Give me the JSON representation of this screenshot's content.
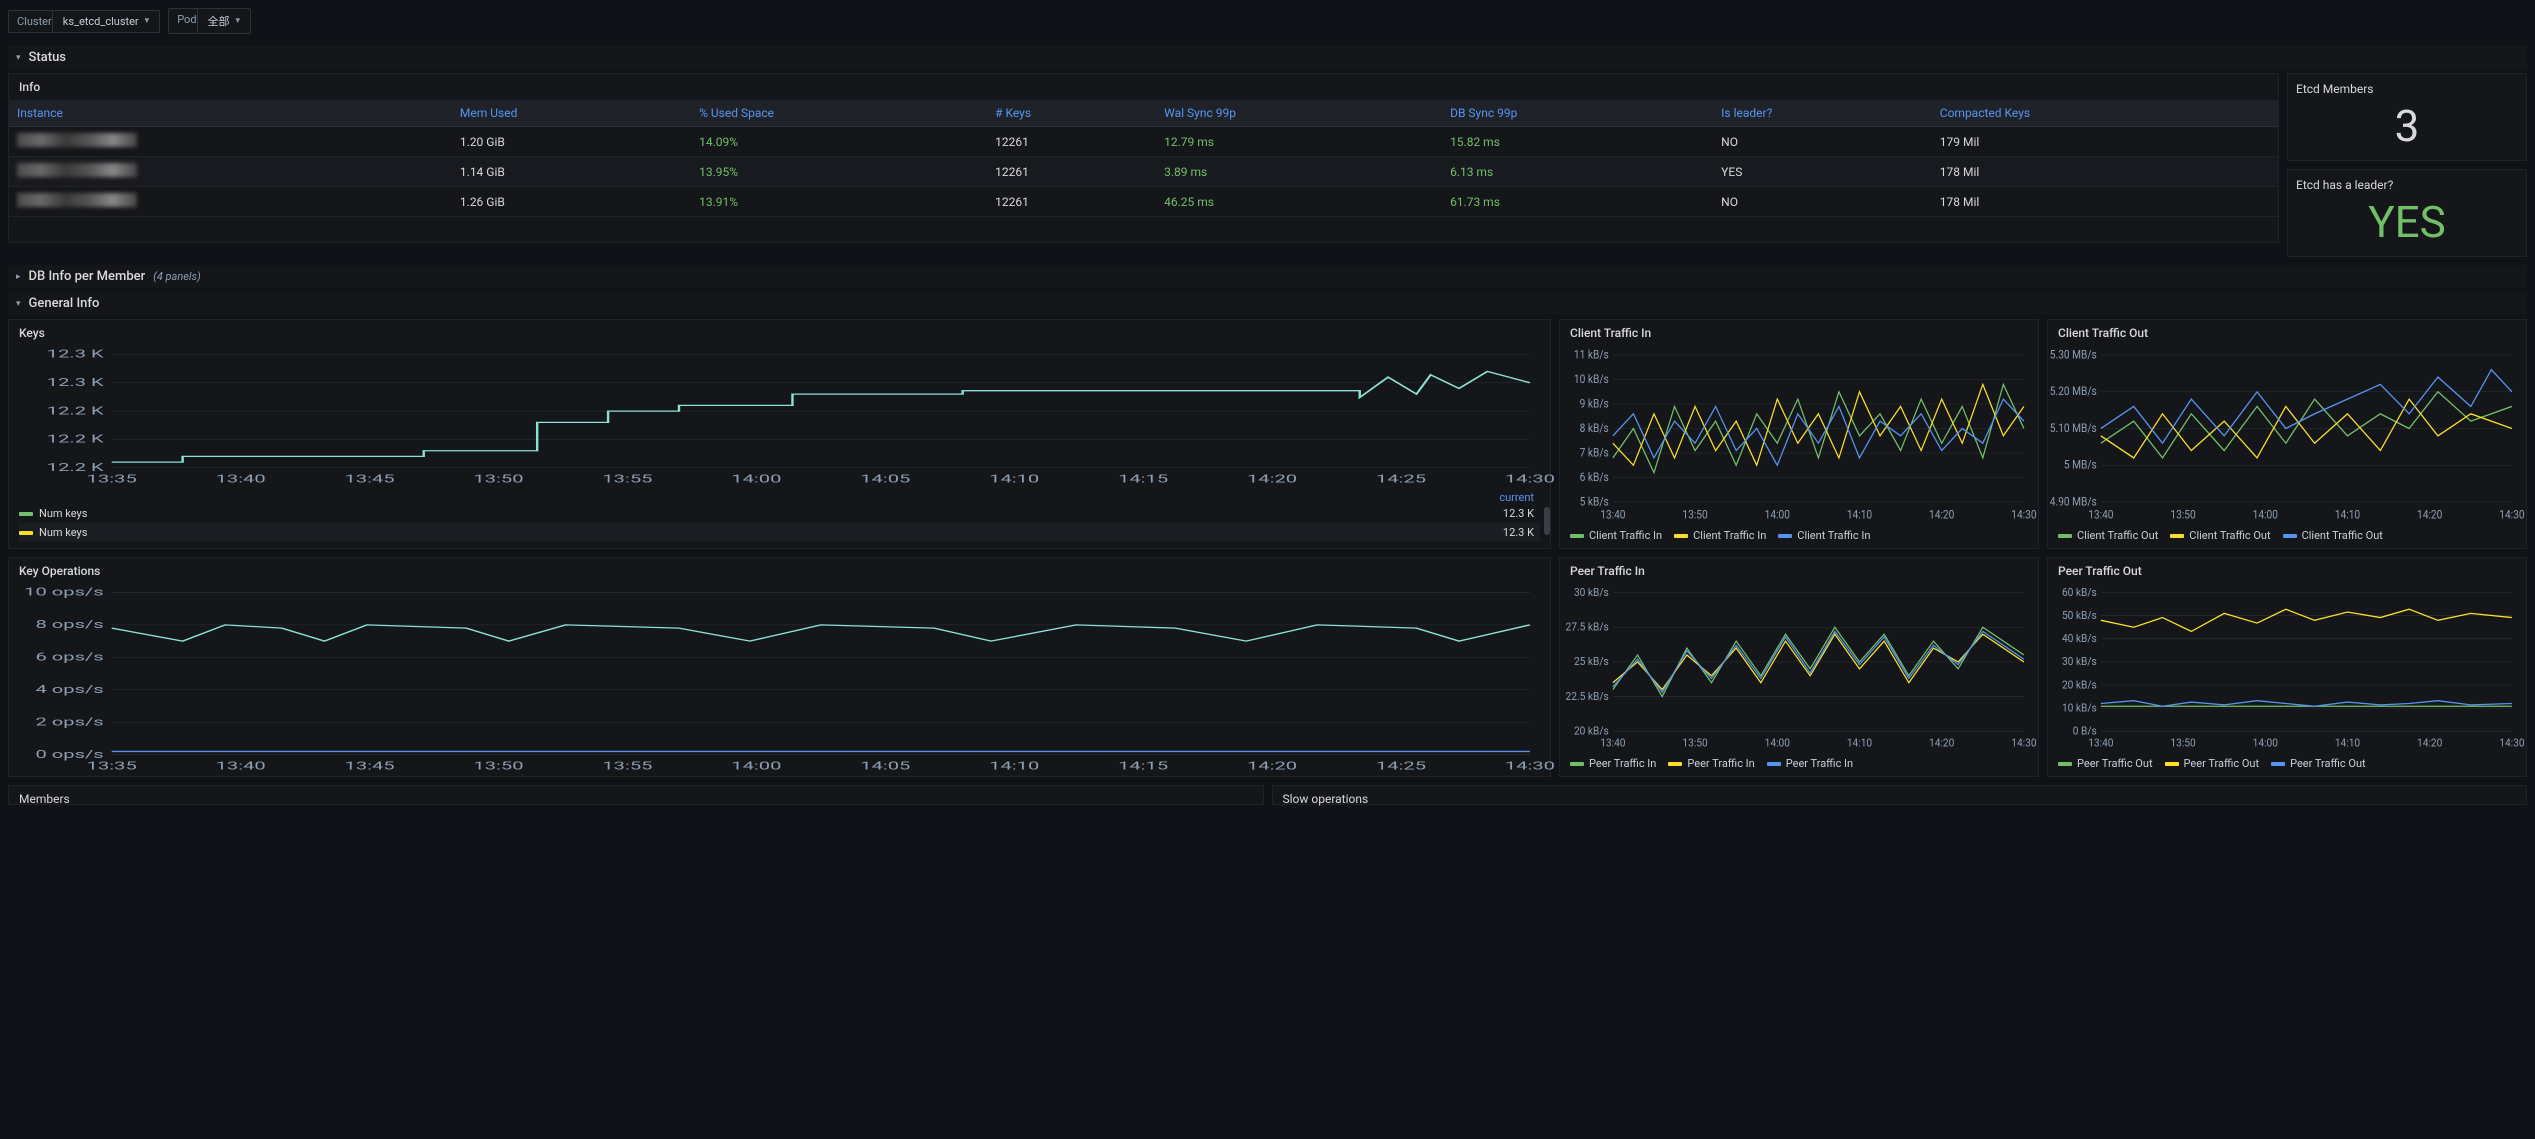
{
  "topbar": {
    "cluster_label": "Cluster",
    "cluster_value": "ks_etcd_cluster",
    "pod_label": "Pod",
    "pod_value": "全部"
  },
  "sections": {
    "status": "Status",
    "db_info": "DB Info per Member",
    "db_info_sub": "(4 panels)",
    "general": "General Info"
  },
  "info_table": {
    "title": "Info",
    "columns": [
      "Instance",
      "Mem Used",
      "% Used Space",
      "# Keys",
      "Wal Sync 99p",
      "DB Sync 99p",
      "Is leader?",
      "Compacted Keys"
    ],
    "rows": [
      {
        "instance": "████",
        "mem": "1.20 GiB",
        "used": "14.09%",
        "keys": "12261",
        "wal": "12.79 ms",
        "db": "15.82 ms",
        "leader": "NO",
        "compact": "179 Mil"
      },
      {
        "instance": "████",
        "mem": "1.14 GiB",
        "used": "13.95%",
        "keys": "12261",
        "wal": "3.89 ms",
        "db": "6.13 ms",
        "leader": "YES",
        "compact": "178 Mil"
      },
      {
        "instance": "████",
        "mem": "1.26 GiB",
        "used": "13.91%",
        "keys": "12261",
        "wal": "46.25 ms",
        "db": "61.73 ms",
        "leader": "NO",
        "compact": "178 Mil"
      }
    ]
  },
  "stat_members": {
    "label": "Etcd Members",
    "value": "3"
  },
  "stat_leader": {
    "label": "Etcd has a leader?",
    "value": "YES"
  },
  "colors": {
    "green": "#73bf69",
    "yellow": "#fade2a",
    "blue": "#5794f2",
    "teal": "#8ae2d6",
    "grid": "#2c3235",
    "axis": "#8e9fb3"
  },
  "time_ticks_wide": [
    "13:35",
    "13:40",
    "13:45",
    "13:50",
    "13:55",
    "14:00",
    "14:05",
    "14:10",
    "14:15",
    "14:20",
    "14:25",
    "14:30"
  ],
  "time_ticks_narrow": [
    "13:40",
    "13:50",
    "14:00",
    "14:10",
    "14:20",
    "14:30"
  ],
  "keys_panel": {
    "title": "Keys",
    "y_ticks": [
      "12.3 K",
      "12.3 K",
      "12.2 K",
      "12.2 K",
      "12.2 K"
    ],
    "legend_head": "current",
    "legend": [
      {
        "swatch": "#73bf69",
        "label": "Num keys",
        "val": "12.3 K"
      },
      {
        "swatch": "#fade2a",
        "label": "Num keys",
        "val": "12.3 K"
      }
    ],
    "series": [
      {
        "color": "#8ae2d6",
        "points": [
          [
            0,
            95
          ],
          [
            5,
            95
          ],
          [
            5,
            90
          ],
          [
            22,
            90
          ],
          [
            22,
            85
          ],
          [
            30,
            85
          ],
          [
            30,
            60
          ],
          [
            35,
            60
          ],
          [
            35,
            50
          ],
          [
            40,
            50
          ],
          [
            40,
            45
          ],
          [
            48,
            45
          ],
          [
            48,
            35
          ],
          [
            60,
            35
          ],
          [
            60,
            32
          ],
          [
            88,
            32
          ],
          [
            88,
            38
          ],
          [
            90,
            20
          ],
          [
            92,
            35
          ],
          [
            93,
            18
          ],
          [
            95,
            30
          ],
          [
            97,
            15
          ],
          [
            100,
            25
          ]
        ]
      }
    ]
  },
  "keyops_panel": {
    "title": "Key Operations",
    "y_ticks": [
      "10 ops/s",
      "8 ops/s",
      "6 ops/s",
      "4 ops/s",
      "2 ops/s",
      "0 ops/s"
    ],
    "series": [
      {
        "color": "#8ae2d6",
        "points": [
          [
            0,
            22
          ],
          [
            5,
            30
          ],
          [
            8,
            20
          ],
          [
            12,
            22
          ],
          [
            15,
            30
          ],
          [
            18,
            20
          ],
          [
            25,
            22
          ],
          [
            28,
            30
          ],
          [
            32,
            20
          ],
          [
            40,
            22
          ],
          [
            45,
            30
          ],
          [
            50,
            20
          ],
          [
            58,
            22
          ],
          [
            62,
            30
          ],
          [
            68,
            20
          ],
          [
            75,
            22
          ],
          [
            80,
            30
          ],
          [
            85,
            20
          ],
          [
            92,
            22
          ],
          [
            95,
            30
          ],
          [
            100,
            20
          ]
        ]
      },
      {
        "color": "#5794f2",
        "points": [
          [
            0,
            98
          ],
          [
            100,
            98
          ]
        ]
      }
    ]
  },
  "client_in": {
    "title": "Client Traffic In",
    "y_ticks": [
      "11 kB/s",
      "10 kB/s",
      "9 kB/s",
      "8 kB/s",
      "7 kB/s",
      "6 kB/s",
      "5 kB/s"
    ],
    "legend": [
      {
        "c": "#73bf69",
        "l": "Client Traffic In"
      },
      {
        "c": "#fade2a",
        "l": "Client Traffic In"
      },
      {
        "c": "#5794f2",
        "l": "Client Traffic In"
      }
    ],
    "series": [
      {
        "color": "#73bf69",
        "points": [
          [
            0,
            70
          ],
          [
            5,
            50
          ],
          [
            10,
            80
          ],
          [
            15,
            35
          ],
          [
            20,
            65
          ],
          [
            25,
            45
          ],
          [
            30,
            75
          ],
          [
            35,
            40
          ],
          [
            40,
            60
          ],
          [
            45,
            30
          ],
          [
            50,
            70
          ],
          [
            55,
            25
          ],
          [
            60,
            55
          ],
          [
            65,
            40
          ],
          [
            70,
            65
          ],
          [
            75,
            30
          ],
          [
            80,
            60
          ],
          [
            85,
            35
          ],
          [
            90,
            70
          ],
          [
            95,
            20
          ],
          [
            100,
            50
          ]
        ]
      },
      {
        "color": "#fade2a",
        "points": [
          [
            0,
            60
          ],
          [
            5,
            75
          ],
          [
            10,
            40
          ],
          [
            15,
            70
          ],
          [
            20,
            35
          ],
          [
            25,
            65
          ],
          [
            30,
            45
          ],
          [
            35,
            75
          ],
          [
            40,
            30
          ],
          [
            45,
            60
          ],
          [
            50,
            40
          ],
          [
            55,
            70
          ],
          [
            60,
            25
          ],
          [
            65,
            55
          ],
          [
            70,
            35
          ],
          [
            75,
            65
          ],
          [
            80,
            30
          ],
          [
            85,
            60
          ],
          [
            90,
            20
          ],
          [
            95,
            55
          ],
          [
            100,
            35
          ]
        ]
      },
      {
        "color": "#5794f2",
        "points": [
          [
            0,
            55
          ],
          [
            5,
            40
          ],
          [
            10,
            70
          ],
          [
            15,
            45
          ],
          [
            20,
            60
          ],
          [
            25,
            35
          ],
          [
            30,
            65
          ],
          [
            35,
            50
          ],
          [
            40,
            75
          ],
          [
            45,
            40
          ],
          [
            50,
            60
          ],
          [
            55,
            35
          ],
          [
            60,
            70
          ],
          [
            65,
            45
          ],
          [
            70,
            55
          ],
          [
            75,
            40
          ],
          [
            80,
            65
          ],
          [
            85,
            50
          ],
          [
            90,
            60
          ],
          [
            95,
            30
          ],
          [
            100,
            45
          ]
        ]
      }
    ]
  },
  "client_out": {
    "title": "Client Traffic Out",
    "y_ticks": [
      "5.30 MB/s",
      "5.20 MB/s",
      "5.10 MB/s",
      "5 MB/s",
      "4.90 MB/s"
    ],
    "legend": [
      {
        "c": "#73bf69",
        "l": "Client Traffic Out"
      },
      {
        "c": "#fade2a",
        "l": "Client Traffic Out"
      },
      {
        "c": "#5794f2",
        "l": "Client Traffic Out"
      }
    ],
    "series": [
      {
        "color": "#73bf69",
        "points": [
          [
            0,
            60
          ],
          [
            8,
            45
          ],
          [
            15,
            70
          ],
          [
            22,
            40
          ],
          [
            30,
            65
          ],
          [
            38,
            35
          ],
          [
            45,
            60
          ],
          [
            52,
            30
          ],
          [
            60,
            55
          ],
          [
            68,
            40
          ],
          [
            75,
            50
          ],
          [
            82,
            25
          ],
          [
            90,
            45
          ],
          [
            100,
            35
          ]
        ]
      },
      {
        "color": "#fade2a",
        "points": [
          [
            0,
            55
          ],
          [
            8,
            70
          ],
          [
            15,
            40
          ],
          [
            22,
            65
          ],
          [
            30,
            45
          ],
          [
            38,
            70
          ],
          [
            45,
            35
          ],
          [
            52,
            60
          ],
          [
            60,
            40
          ],
          [
            68,
            65
          ],
          [
            75,
            30
          ],
          [
            82,
            55
          ],
          [
            90,
            40
          ],
          [
            100,
            50
          ]
        ]
      },
      {
        "color": "#5794f2",
        "points": [
          [
            0,
            50
          ],
          [
            8,
            35
          ],
          [
            15,
            60
          ],
          [
            22,
            30
          ],
          [
            30,
            55
          ],
          [
            38,
            25
          ],
          [
            45,
            50
          ],
          [
            52,
            40
          ],
          [
            60,
            30
          ],
          [
            68,
            20
          ],
          [
            75,
            40
          ],
          [
            82,
            15
          ],
          [
            90,
            35
          ],
          [
            95,
            10
          ],
          [
            100,
            25
          ]
        ]
      }
    ]
  },
  "peer_in": {
    "title": "Peer Traffic In",
    "y_ticks": [
      "30 kB/s",
      "27.5 kB/s",
      "25 kB/s",
      "22.5 kB/s",
      "20 kB/s"
    ],
    "legend": [
      {
        "c": "#73bf69",
        "l": "Peer Traffic In"
      },
      {
        "c": "#fade2a",
        "l": "Peer Traffic In"
      },
      {
        "c": "#5794f2",
        "l": "Peer Traffic In"
      }
    ],
    "series": [
      {
        "color": "#73bf69",
        "points": [
          [
            0,
            70
          ],
          [
            6,
            45
          ],
          [
            12,
            75
          ],
          [
            18,
            40
          ],
          [
            24,
            65
          ],
          [
            30,
            35
          ],
          [
            36,
            60
          ],
          [
            42,
            30
          ],
          [
            48,
            55
          ],
          [
            54,
            25
          ],
          [
            60,
            50
          ],
          [
            66,
            30
          ],
          [
            72,
            60
          ],
          [
            78,
            35
          ],
          [
            84,
            55
          ],
          [
            90,
            25
          ],
          [
            100,
            45
          ]
        ]
      },
      {
        "color": "#fade2a",
        "points": [
          [
            0,
            65
          ],
          [
            6,
            50
          ],
          [
            12,
            70
          ],
          [
            18,
            45
          ],
          [
            24,
            60
          ],
          [
            30,
            40
          ],
          [
            36,
            65
          ],
          [
            42,
            35
          ],
          [
            48,
            60
          ],
          [
            54,
            30
          ],
          [
            60,
            55
          ],
          [
            66,
            35
          ],
          [
            72,
            65
          ],
          [
            78,
            40
          ],
          [
            84,
            50
          ],
          [
            90,
            30
          ],
          [
            100,
            50
          ]
        ]
      },
      {
        "color": "#5794f2",
        "points": [
          [
            0,
            68
          ],
          [
            6,
            48
          ],
          [
            12,
            72
          ],
          [
            18,
            42
          ],
          [
            24,
            62
          ],
          [
            30,
            38
          ],
          [
            36,
            62
          ],
          [
            42,
            32
          ],
          [
            48,
            58
          ],
          [
            54,
            28
          ],
          [
            60,
            52
          ],
          [
            66,
            32
          ],
          [
            72,
            62
          ],
          [
            78,
            38
          ],
          [
            84,
            52
          ],
          [
            90,
            28
          ],
          [
            100,
            48
          ]
        ]
      }
    ]
  },
  "peer_out": {
    "title": "Peer Traffic Out",
    "y_ticks": [
      "60 kB/s",
      "50 kB/s",
      "40 kB/s",
      "30 kB/s",
      "20 kB/s",
      "10 kB/s",
      "0 B/s"
    ],
    "legend": [
      {
        "c": "#73bf69",
        "l": "Peer Traffic Out"
      },
      {
        "c": "#fade2a",
        "l": "Peer Traffic Out"
      },
      {
        "c": "#5794f2",
        "l": "Peer Traffic Out"
      }
    ],
    "series": [
      {
        "color": "#fade2a",
        "points": [
          [
            0,
            20
          ],
          [
            8,
            25
          ],
          [
            15,
            18
          ],
          [
            22,
            28
          ],
          [
            30,
            15
          ],
          [
            38,
            22
          ],
          [
            45,
            12
          ],
          [
            52,
            20
          ],
          [
            60,
            14
          ],
          [
            68,
            18
          ],
          [
            75,
            12
          ],
          [
            82,
            20
          ],
          [
            90,
            15
          ],
          [
            100,
            18
          ]
        ]
      },
      {
        "color": "#73bf69",
        "points": [
          [
            0,
            82
          ],
          [
            100,
            82
          ]
        ]
      },
      {
        "color": "#5794f2",
        "points": [
          [
            0,
            80
          ],
          [
            8,
            78
          ],
          [
            15,
            82
          ],
          [
            22,
            79
          ],
          [
            30,
            81
          ],
          [
            38,
            78
          ],
          [
            45,
            80
          ],
          [
            52,
            82
          ],
          [
            60,
            79
          ],
          [
            68,
            81
          ],
          [
            75,
            80
          ],
          [
            82,
            78
          ],
          [
            90,
            81
          ],
          [
            100,
            80
          ]
        ]
      }
    ]
  },
  "cut_panels": {
    "members": "Members",
    "slow": "Slow operations"
  }
}
